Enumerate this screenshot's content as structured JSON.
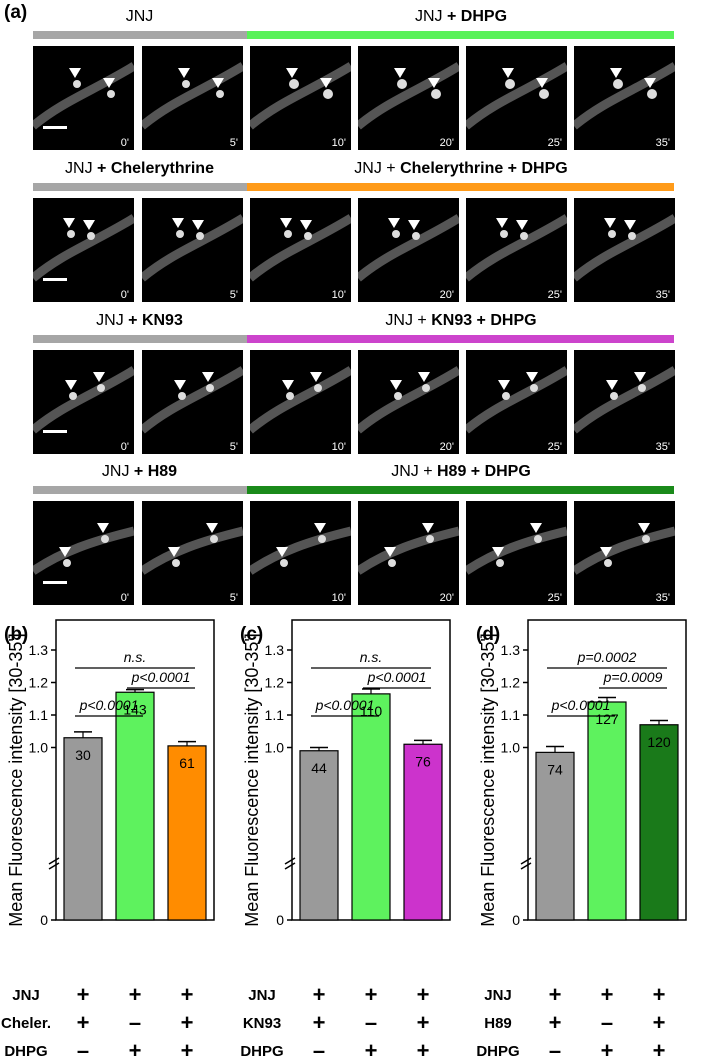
{
  "panel_a": {
    "letter": "(a)",
    "rows": [
      {
        "title_ctrl": [
          "JNJ",
          ""
        ],
        "title_exp": [
          "JNJ",
          " + DHPG"
        ],
        "exp_color": "#59f259",
        "times": [
          "0'",
          "5'",
          "10'",
          "20'",
          "25'",
          "35'"
        ]
      },
      {
        "title_ctrl": [
          "JNJ",
          " + Chelerythrine"
        ],
        "title_exp": [
          "JNJ + ",
          "Chelerythrine + DHPG"
        ],
        "exp_color": "#ff9b1a",
        "times": [
          "0'",
          "5'",
          "10'",
          "20'",
          "25'",
          "35'"
        ]
      },
      {
        "title_ctrl": [
          "JNJ",
          " + KN93"
        ],
        "title_exp": [
          "JNJ + ",
          "KN93 + DHPG"
        ],
        "exp_color": "#cc44cc",
        "times": [
          "0'",
          "5'",
          "10'",
          "20'",
          "25'",
          "35'"
        ]
      },
      {
        "title_ctrl": [
          "JNJ",
          " + H89"
        ],
        "title_exp": [
          "JNJ + ",
          "H89 + DHPG"
        ],
        "exp_color": "#1a8a1a",
        "times": [
          "0'",
          "5'",
          "10'",
          "20'",
          "25'",
          "35'"
        ]
      }
    ]
  },
  "chart_data": [
    {
      "type": "bar",
      "panel": "(b)",
      "ylabel": "Mean Fluorescence intensity [30-35']",
      "yticks": [
        "0",
        "1.0",
        "1.1",
        "1.2",
        "1.3"
      ],
      "axis_break": true,
      "ylim": [
        0.9,
        1.4
      ],
      "categories": [
        "1",
        "2",
        "3"
      ],
      "values": [
        1.03,
        1.17,
        1.005
      ],
      "errors": [
        0.018,
        0.008,
        0.013
      ],
      "n": [
        "30",
        "143",
        "61"
      ],
      "colors": [
        "#9a9a9a",
        "#5ef25e",
        "#ff8c00"
      ],
      "comparisons": [
        {
          "from": 0,
          "to": 2,
          "label": "n.s."
        },
        {
          "from": 0,
          "to": 1,
          "label": "p<0.0001"
        },
        {
          "from": 1,
          "to": 2,
          "label": "p<0.0001"
        }
      ],
      "table": {
        "rows": [
          {
            "label": "JNJ",
            "marks": [
              "+",
              "+",
              "+"
            ]
          },
          {
            "label": "Cheler.",
            "marks": [
              "+",
              "–",
              "+"
            ]
          },
          {
            "label": "DHPG",
            "marks": [
              "–",
              "+",
              "+"
            ]
          }
        ]
      }
    },
    {
      "type": "bar",
      "panel": "(c)",
      "ylabel": "Mean Fluorescence intensity [30-35']",
      "yticks": [
        "0",
        "1.0",
        "1.1",
        "1.2",
        "1.3"
      ],
      "axis_break": true,
      "ylim": [
        0.9,
        1.4
      ],
      "categories": [
        "1",
        "2",
        "3"
      ],
      "values": [
        0.99,
        1.165,
        1.01
      ],
      "errors": [
        0.01,
        0.015,
        0.012
      ],
      "n": [
        "44",
        "110",
        "76"
      ],
      "colors": [
        "#9a9a9a",
        "#5ef25e",
        "#cc33cc"
      ],
      "comparisons": [
        {
          "from": 0,
          "to": 2,
          "label": "n.s."
        },
        {
          "from": 0,
          "to": 1,
          "label": "p<0.0001"
        },
        {
          "from": 1,
          "to": 2,
          "label": "p<0.0001"
        }
      ],
      "table": {
        "rows": [
          {
            "label": "JNJ",
            "marks": [
              "+",
              "+",
              "+"
            ]
          },
          {
            "label": "KN93",
            "marks": [
              "+",
              "–",
              "+"
            ]
          },
          {
            "label": "DHPG",
            "marks": [
              "–",
              "+",
              "+"
            ]
          }
        ]
      }
    },
    {
      "type": "bar",
      "panel": "(d)",
      "ylabel": "Mean Fluorescence intensity [30-35']",
      "yticks": [
        "0",
        "1.0",
        "1.1",
        "1.2",
        "1.3"
      ],
      "axis_break": true,
      "ylim": [
        0.9,
        1.4
      ],
      "categories": [
        "1",
        "2",
        "3"
      ],
      "values": [
        0.985,
        1.14,
        1.07
      ],
      "errors": [
        0.018,
        0.014,
        0.013
      ],
      "n": [
        "74",
        "127",
        "120"
      ],
      "colors": [
        "#9a9a9a",
        "#5ef25e",
        "#1a7a1a"
      ],
      "comparisons": [
        {
          "from": 0,
          "to": 2,
          "label": "p=0.0002"
        },
        {
          "from": 0,
          "to": 1,
          "label": "p<0.0001"
        },
        {
          "from": 1,
          "to": 2,
          "label": "p=0.0009"
        }
      ],
      "table": {
        "rows": [
          {
            "label": "JNJ",
            "marks": [
              "+",
              "+",
              "+"
            ]
          },
          {
            "label": "H89",
            "marks": [
              "+",
              "–",
              "+"
            ]
          },
          {
            "label": "DHPG",
            "marks": [
              "–",
              "+",
              "+"
            ]
          }
        ]
      }
    }
  ]
}
